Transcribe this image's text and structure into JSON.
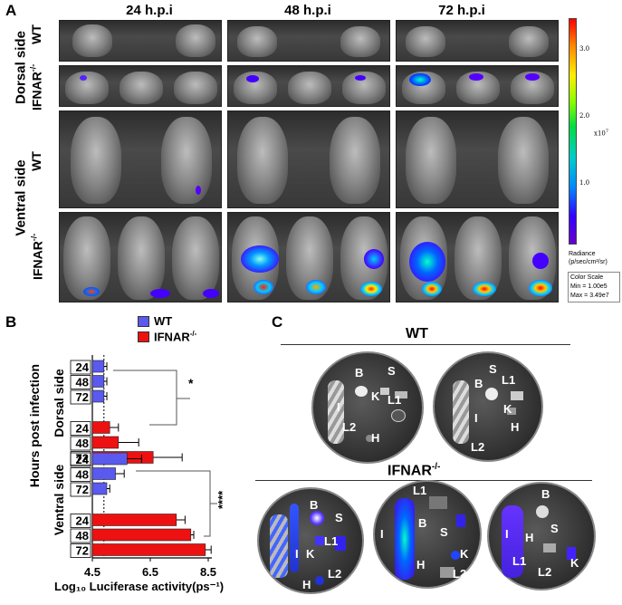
{
  "panel_a": {
    "letter": "A",
    "timepoints": [
      "24 h.p.i",
      "48 h.p.i",
      "72 h.p.i"
    ],
    "side_dorsal": "Dorsal side",
    "side_ventral": "Ventral side",
    "row_wt": "WT",
    "row_ifnar": "IFNAR",
    "ifnar_sup": "-/-",
    "colorbar": {
      "ticks": [
        "3.0",
        "2.0",
        "1.0"
      ],
      "multiplier": "x10",
      "multiplier_exp": "7",
      "title_line1": "Radiance",
      "title_line2": "(p/sec/cm²/sr)",
      "scale_title": "Color Scale",
      "scale_min": "Min = 1.00e5",
      "scale_max": "Max = 3.49e7"
    }
  },
  "panel_b": {
    "letter": "B",
    "legend_wt": "WT",
    "legend_ifnar": "IFNAR",
    "ylabel": "Hours post infection",
    "xlabel": "Log₁₀ Luciferase activity(ps⁻¹)",
    "group_dorsal": "Dorsal side",
    "group_ventral": "Ventral side",
    "sig_dorsal": "*",
    "sig_ventral": "****"
  },
  "chart_data": {
    "type": "bar",
    "orientation": "horizontal",
    "xlabel": "Log10 Luciferase activity(ps-1)",
    "ylabel": "Hours post infection",
    "xlim": [
      4.5,
      8.5
    ],
    "xticks": [
      "4.5",
      "6.5",
      "8.5"
    ],
    "reference_line": 4.9,
    "groups": [
      {
        "name": "Dorsal side",
        "bars": [
          {
            "label": "24",
            "series": "WT",
            "value": 4.9,
            "err": 0.1
          },
          {
            "label": "48",
            "series": "WT",
            "value": 4.9,
            "err": 0.1
          },
          {
            "label": "72",
            "series": "WT",
            "value": 4.9,
            "err": 0.1
          },
          {
            "label": "24",
            "series": "IFNAR-/-",
            "value": 5.1,
            "err": 0.3
          },
          {
            "label": "48",
            "series": "IFNAR-/-",
            "value": 5.4,
            "err": 0.7
          },
          {
            "label": "72",
            "series": "IFNAR-/-",
            "value": 6.6,
            "err": 1.0
          }
        ]
      },
      {
        "name": "Ventral side",
        "bars": [
          {
            "label": "24",
            "series": "WT",
            "value": 5.7,
            "err": 0.5
          },
          {
            "label": "48",
            "series": "WT",
            "value": 5.3,
            "err": 0.3
          },
          {
            "label": "72",
            "series": "WT",
            "value": 5.0,
            "err": 0.1
          },
          {
            "label": "24",
            "series": "IFNAR-/-",
            "value": 7.4,
            "err": 0.3
          },
          {
            "label": "48",
            "series": "IFNAR-/-",
            "value": 7.9,
            "err": 0.1
          },
          {
            "label": "72",
            "series": "IFNAR-/-",
            "value": 8.4,
            "err": 0.2
          }
        ]
      }
    ],
    "colors": {
      "WT": "#5a5aee",
      "IFNAR-/-": "#ee1111"
    }
  },
  "panel_c": {
    "letter": "C",
    "title_wt": "WT",
    "title_ifnar": "IFNAR",
    "organs": [
      "B",
      "S",
      "K",
      "L1",
      "L2",
      "H",
      "I"
    ]
  }
}
